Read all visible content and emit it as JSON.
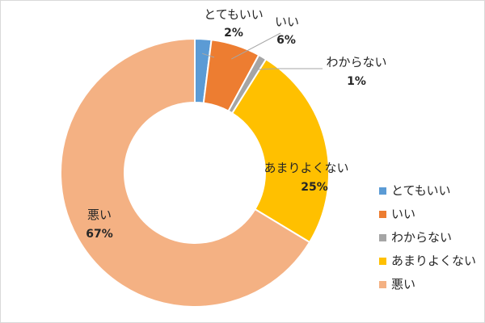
{
  "chart_data": {
    "type": "pie",
    "donut": true,
    "categories": [
      "とてもいい",
      "いい",
      "わからない",
      "あまりよくない",
      "悪い"
    ],
    "values": [
      2,
      6,
      1,
      25,
      67
    ],
    "percent_labels": [
      "2%",
      "6%",
      "1%",
      "25%",
      "67%"
    ],
    "colors": [
      "#5b9bd5",
      "#ed7d31",
      "#a5a5a5",
      "#ffc000",
      "#f4b183"
    ],
    "legend_position": "right",
    "title": ""
  }
}
